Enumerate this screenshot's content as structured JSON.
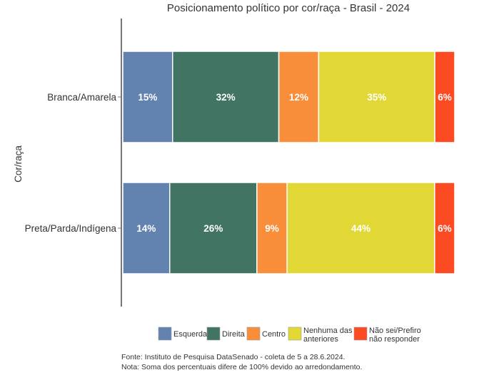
{
  "chart_data": {
    "type": "bar",
    "orientation": "horizontal",
    "stacked": true,
    "title": "Posicionamento político por cor/raça - Brasil - 2024",
    "xlabel": "",
    "ylabel": "Cor/raça",
    "xlim": [
      0,
      100
    ],
    "grid": false,
    "legend_position": "bottom",
    "categories": [
      "Branca/Amarela",
      "Preta/Parda/Indígena"
    ],
    "series": [
      {
        "name": "Esquerda",
        "color": "#6282b0",
        "values": [
          15,
          14
        ],
        "labels": [
          "15%",
          "14%"
        ]
      },
      {
        "name": "Direita",
        "color": "#427463",
        "values": [
          32,
          26
        ],
        "labels": [
          "32%",
          "26%"
        ]
      },
      {
        "name": "Centro",
        "color": "#f98e3a",
        "values": [
          12,
          9
        ],
        "labels": [
          "12%",
          "9%"
        ]
      },
      {
        "name": "Nenhuma das anteriores",
        "color": "#e1d836",
        "values": [
          35,
          44
        ],
        "labels": [
          "35%",
          "44%"
        ]
      },
      {
        "name": "Não sei/Prefiro não responder",
        "color": "#fc4b22",
        "values": [
          6,
          6
        ],
        "labels": [
          "6%",
          "6%"
        ]
      }
    ],
    "legend_lines": [
      [
        "Esquerda"
      ],
      [
        "Direita"
      ],
      [
        "Centro"
      ],
      [
        "Nenhuma das",
        "anteriores"
      ],
      [
        "Não sei/Prefiro",
        "não responder"
      ]
    ]
  },
  "footnotes": {
    "source": "Fonte: Instituto de Pesquisa DataSenado - coleta de 5 a 28.6.2024.",
    "note": "Nota: Soma dos percentuais difere de 100% devido ao arredondamento."
  }
}
